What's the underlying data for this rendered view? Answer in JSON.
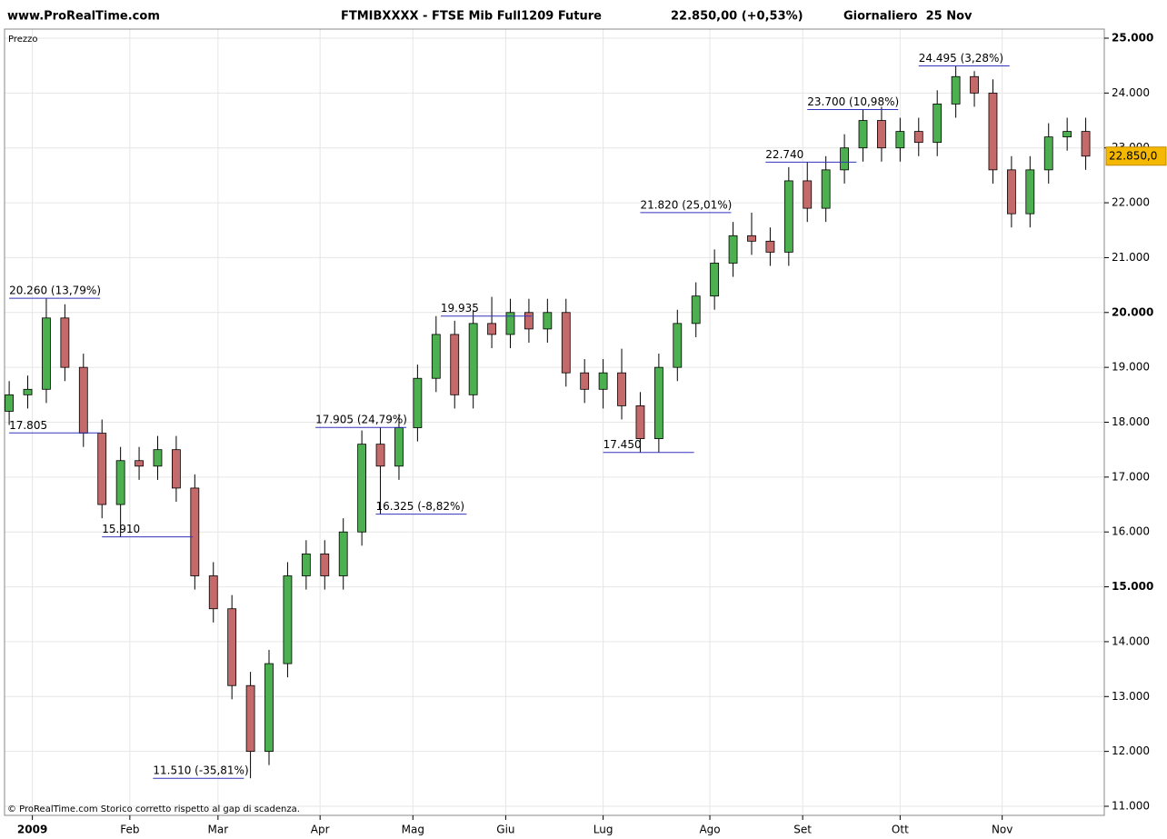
{
  "chart_data": {
    "type": "candlestick",
    "site": "www.ProRealTime.com",
    "title": "FTMIBXXXX - FTSE Mib Full1209 Future",
    "subtitle": "22.850,00 (+0,53%)",
    "period": "Giornaliero  25 Nov",
    "ylabel": "Prezzo",
    "footer": "© ProRealTime.com Storico corretto rispetto al gap di scadenza.",
    "up_color": "#4caf50",
    "down_color": "#c46a6a",
    "grid": true,
    "last_price": {
      "value": 22850,
      "label": "22.850,0"
    },
    "x": [
      0,
      4,
      8,
      12,
      16,
      20,
      24,
      28,
      32,
      36,
      40,
      44,
      48,
      52,
      56,
      60,
      64,
      68,
      72,
      76,
      80,
      84,
      88,
      92,
      96,
      100,
      104,
      108,
      112,
      116,
      120,
      124,
      128,
      132,
      136,
      140,
      144,
      148,
      152,
      156,
      160,
      164,
      168,
      172,
      176,
      180,
      184,
      188,
      192,
      196,
      200,
      204,
      208,
      212,
      216,
      220,
      224,
      228,
      232
    ],
    "open": [
      18200,
      18500,
      18600,
      19900,
      19000,
      17800,
      16500,
      17300,
      17200,
      17500,
      16800,
      15200,
      14600,
      13200,
      12000,
      13600,
      15200,
      15600,
      15200,
      16000,
      17600,
      17200,
      17900,
      18800,
      19600,
      18500,
      19800,
      19600,
      20000,
      19700,
      20000,
      18900,
      18600,
      18900,
      18300,
      17700,
      19000,
      19800,
      20300,
      20900,
      21400,
      21300,
      21100,
      22400,
      21900,
      22600,
      23000,
      23500,
      23000,
      23300,
      23100,
      23800,
      24300,
      24000,
      22600,
      21800,
      22600,
      23200,
      23300
    ],
    "high": [
      18750,
      18850,
      20260,
      20150,
      19250,
      18050,
      17550,
      17550,
      17750,
      17750,
      17050,
      15450,
      14850,
      13450,
      13850,
      15450,
      15850,
      15850,
      16250,
      17850,
      17905,
      18150,
      19050,
      19935,
      19850,
      20050,
      20285,
      20250,
      20250,
      20250,
      20250,
      19150,
      19150,
      19340,
      18550,
      19250,
      20050,
      20550,
      21150,
      21650,
      21820,
      21550,
      22650,
      22740,
      22850,
      23250,
      23700,
      23750,
      23550,
      23550,
      24050,
      24495,
      24400,
      24250,
      22850,
      22850,
      23450,
      23550,
      23550
    ],
    "low": [
      17950,
      18250,
      18350,
      18750,
      17550,
      16250,
      15910,
      16950,
      16950,
      16550,
      14950,
      14350,
      12950,
      11510,
      11750,
      13350,
      14950,
      14950,
      14950,
      15750,
      16325,
      16950,
      17650,
      18550,
      18250,
      18250,
      19350,
      19350,
      19450,
      19450,
      18650,
      18350,
      18250,
      18050,
      17450,
      17450,
      18750,
      19550,
      20050,
      20650,
      21050,
      20850,
      20850,
      21650,
      21650,
      22350,
      22750,
      22750,
      22750,
      22850,
      22850,
      23550,
      23750,
      22350,
      21550,
      21550,
      22350,
      22950,
      22600
    ],
    "close": [
      18500,
      18600,
      19900,
      19000,
      17800,
      16500,
      17300,
      17200,
      17500,
      16800,
      15200,
      14600,
      13200,
      12000,
      13600,
      15200,
      15600,
      15200,
      16000,
      17600,
      17200,
      17900,
      18800,
      19600,
      18500,
      19800,
      19600,
      20000,
      19700,
      20000,
      18900,
      18600,
      18900,
      18300,
      17700,
      19000,
      19800,
      20300,
      20900,
      21400,
      21300,
      21100,
      22400,
      21900,
      22600,
      23000,
      23500,
      23000,
      23300,
      23100,
      23800,
      24300,
      24000,
      22600,
      21800,
      22600,
      23200,
      23300,
      22850
    ],
    "annotations": [
      {
        "text": "20.260 (13,79%)",
        "x": 0,
        "value": 20260
      },
      {
        "text": "17.805",
        "x": 0,
        "value": 17805
      },
      {
        "text": "15.910",
        "x": 20,
        "value": 15910
      },
      {
        "text": "11.510 (-35,81%)",
        "x": 31,
        "value": 11510
      },
      {
        "text": "17.905 (24,79%)",
        "x": 66,
        "value": 17905
      },
      {
        "text": "16.325 (-8,82%)",
        "x": 79,
        "value": 16325
      },
      {
        "text": "19.935",
        "x": 93,
        "value": 19935
      },
      {
        "text": "17.450",
        "x": 128,
        "value": 17450
      },
      {
        "text": "21.820 (25,01%)",
        "x": 136,
        "value": 21820
      },
      {
        "text": "22.740",
        "x": 163,
        "value": 22740
      },
      {
        "text": "23.700 (10,98%)",
        "x": 172,
        "value": 23700
      },
      {
        "text": "24.495 (3,28%)",
        "x": 196,
        "value": 24495
      }
    ],
    "xlim": [
      -1,
      236
    ],
    "xticks": [
      {
        "value": 5,
        "label": "2009"
      },
      {
        "value": 26,
        "label": "Feb"
      },
      {
        "value": 45,
        "label": "Mar"
      },
      {
        "value": 67,
        "label": "Apr"
      },
      {
        "value": 87,
        "label": "Mag"
      },
      {
        "value": 107,
        "label": "Giu"
      },
      {
        "value": 128,
        "label": "Lug"
      },
      {
        "value": 151,
        "label": "Ago"
      },
      {
        "value": 171,
        "label": "Set"
      },
      {
        "value": 192,
        "label": "Ott"
      },
      {
        "value": 214,
        "label": "Nov"
      }
    ],
    "ylim": [
      11000,
      25000
    ],
    "yticks": [
      {
        "value": 11000,
        "label": "11.000"
      },
      {
        "value": 12000,
        "label": "12.000"
      },
      {
        "value": 13000,
        "label": "13.000"
      },
      {
        "value": 14000,
        "label": "14.000"
      },
      {
        "value": 15000,
        "label": "15.000"
      },
      {
        "value": 16000,
        "label": "16.000"
      },
      {
        "value": 17000,
        "label": "17.000"
      },
      {
        "value": 18000,
        "label": "18.000"
      },
      {
        "value": 19000,
        "label": "19.000"
      },
      {
        "value": 20000,
        "label": "20.000"
      },
      {
        "value": 21000,
        "label": "21.000"
      },
      {
        "value": 22000,
        "label": "22.000"
      },
      {
        "value": 23000,
        "label": "23.000"
      },
      {
        "value": 24000,
        "label": "24.000"
      },
      {
        "value": 25000,
        "label": "25.000"
      }
    ]
  }
}
